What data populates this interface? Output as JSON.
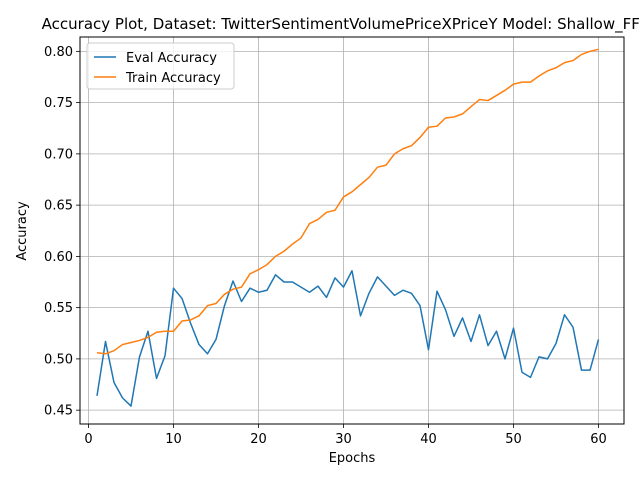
{
  "chart_data": {
    "type": "line",
    "title": "Accuracy Plot, Dataset: TwitterSentimentVolumePriceXPriceY Model: Shallow_FFNN",
    "xlabel": "Epochs",
    "ylabel": "Accuracy",
    "xlim": [
      -1,
      63
    ],
    "ylim": [
      0.4365,
      0.814
    ],
    "grid": true,
    "legend_position": "top-left",
    "xticks": [
      "0",
      "10",
      "20",
      "30",
      "40",
      "50",
      "60"
    ],
    "yticks": [
      "0.45",
      "0.50",
      "0.55",
      "0.60",
      "0.65",
      "0.70",
      "0.75",
      "0.80"
    ],
    "x": [
      1,
      2,
      3,
      4,
      5,
      6,
      7,
      8,
      9,
      10,
      11,
      12,
      13,
      14,
      15,
      16,
      17,
      18,
      19,
      20,
      21,
      22,
      23,
      24,
      25,
      26,
      27,
      28,
      29,
      30,
      31,
      32,
      33,
      34,
      35,
      36,
      37,
      38,
      39,
      40,
      41,
      42,
      43,
      44,
      45,
      46,
      47,
      48,
      49,
      50,
      51,
      52,
      53,
      54,
      55,
      56,
      57,
      58,
      59,
      60
    ],
    "series": [
      {
        "name": "Eval Accuracy",
        "color": "#1f77b4",
        "values": [
          0.464,
          0.517,
          0.477,
          0.462,
          0.454,
          0.502,
          0.527,
          0.481,
          0.503,
          0.569,
          0.559,
          0.535,
          0.514,
          0.505,
          0.519,
          0.552,
          0.576,
          0.556,
          0.569,
          0.565,
          0.567,
          0.582,
          0.575,
          0.575,
          0.57,
          0.565,
          0.571,
          0.56,
          0.579,
          0.57,
          0.586,
          0.542,
          0.564,
          0.58,
          0.571,
          0.562,
          0.567,
          0.564,
          0.552,
          0.509,
          0.566,
          0.548,
          0.522,
          0.54,
          0.517,
          0.543,
          0.513,
          0.527,
          0.5,
          0.53,
          0.487,
          0.482,
          0.502,
          0.5,
          0.515,
          0.543,
          0.531,
          0.489,
          0.489,
          0.519
        ]
      },
      {
        "name": "Train Accuracy",
        "color": "#ff7f0e",
        "values": [
          0.506,
          0.505,
          0.508,
          0.514,
          0.516,
          0.518,
          0.521,
          0.526,
          0.527,
          0.527,
          0.537,
          0.538,
          0.542,
          0.552,
          0.554,
          0.563,
          0.568,
          0.57,
          0.583,
          0.587,
          0.592,
          0.6,
          0.605,
          0.612,
          0.618,
          0.632,
          0.636,
          0.643,
          0.645,
          0.658,
          0.663,
          0.67,
          0.677,
          0.687,
          0.689,
          0.7,
          0.705,
          0.708,
          0.716,
          0.726,
          0.727,
          0.735,
          0.736,
          0.739,
          0.746,
          0.753,
          0.752,
          0.757,
          0.762,
          0.768,
          0.77,
          0.77,
          0.776,
          0.781,
          0.784,
          0.789,
          0.791,
          0.797,
          0.8,
          0.802
        ]
      }
    ]
  }
}
